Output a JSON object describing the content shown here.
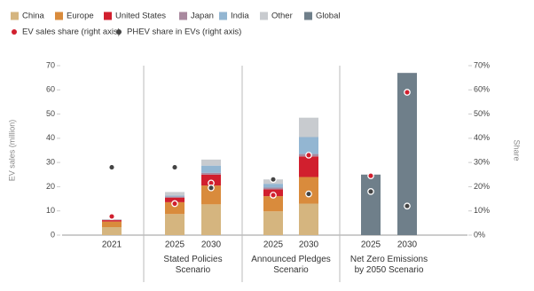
{
  "chart_data": {
    "type": "bar",
    "y_label": "EV sales (million)",
    "y2_label": "Share",
    "groups": [
      {
        "categories": [
          "2021"
        ]
      },
      {
        "name": "Stated Policies Scenario",
        "categories": [
          "2025",
          "2030"
        ]
      },
      {
        "name": "Announced Pledges Scenario",
        "categories": [
          "2025",
          "2030"
        ]
      },
      {
        "name": "Net Zero Emissions by 2050 Scenario",
        "categories": [
          "2025",
          "2030"
        ]
      }
    ],
    "series": [
      {
        "name": "China",
        "color": "#d5b57f",
        "values": [
          3.3,
          8.7,
          12.7,
          9.8,
          13,
          null,
          null
        ]
      },
      {
        "name": "Europe",
        "color": "#d98b3c",
        "values": [
          2.3,
          4.9,
          7.8,
          6.3,
          11,
          null,
          null
        ]
      },
      {
        "name": "United States",
        "color": "#d11f2e",
        "values": [
          0.6,
          1.9,
          4.5,
          2.8,
          8.5,
          null,
          null
        ]
      },
      {
        "name": "Japan",
        "color": "#a9899f",
        "values": [
          0.1,
          0.4,
          0.7,
          0.7,
          1,
          null,
          null
        ]
      },
      {
        "name": "India",
        "color": "#93b6d2",
        "values": [
          0,
          0.4,
          3,
          1.6,
          7,
          null,
          null
        ]
      },
      {
        "name": "Other",
        "color": "#c8cbcf",
        "values": [
          0.3,
          1.5,
          2.5,
          1.8,
          8,
          null,
          null
        ]
      },
      {
        "name": "Global",
        "color": "#6f7f8a",
        "values": [
          null,
          null,
          null,
          null,
          null,
          25,
          67
        ]
      },
      {
        "name": "EV sales share (right axis)",
        "color": "#d11f2e",
        "axis": "y2",
        "values": [
          7.7,
          13,
          21.5,
          16.5,
          33,
          24.5,
          59
        ]
      },
      {
        "name": "PHEV share in EVs  (right axis)",
        "color": "#444444",
        "axis": "y2",
        "values": [
          28,
          28,
          19.5,
          23,
          17,
          18,
          12
        ]
      }
    ],
    "ylim": [
      0,
      70
    ],
    "yticks": [
      0,
      10,
      20,
      30,
      40,
      50,
      60,
      70
    ],
    "y2lim": [
      0,
      70
    ],
    "y2ticks": [
      {
        "value": 0,
        "label": "0%"
      },
      {
        "value": 10,
        "label": "10%"
      },
      {
        "value": 20,
        "label": "20%"
      },
      {
        "value": 30,
        "label": "30%"
      },
      {
        "value": 40,
        "label": "40%"
      },
      {
        "value": 50,
        "label": "50%"
      },
      {
        "value": 60,
        "label": "60%"
      },
      {
        "value": 70,
        "label": "70%"
      }
    ],
    "grid": false
  }
}
